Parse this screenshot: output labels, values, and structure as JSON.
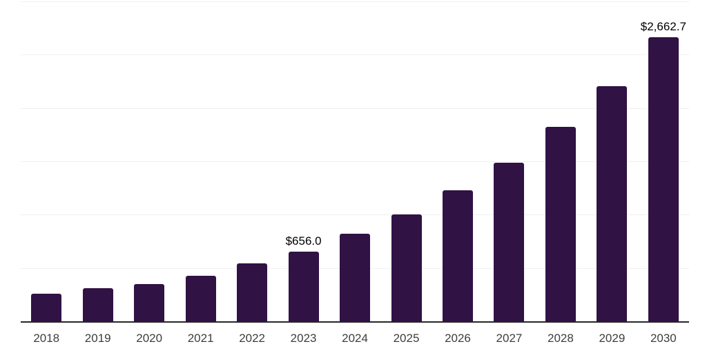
{
  "chart_data": {
    "type": "bar",
    "categories": [
      "2018",
      "2019",
      "2020",
      "2021",
      "2022",
      "2023",
      "2024",
      "2025",
      "2026",
      "2027",
      "2028",
      "2029",
      "2030"
    ],
    "values": [
      260,
      310,
      350,
      430,
      540,
      656.0,
      820,
      1000,
      1230,
      1490,
      1825,
      2205,
      2662.7
    ],
    "data_labels": [
      null,
      null,
      null,
      null,
      null,
      "$656.0",
      null,
      null,
      null,
      null,
      null,
      null,
      "$2,662.7"
    ],
    "title": "",
    "xlabel": "",
    "ylabel": "",
    "ylim": [
      0,
      3000
    ],
    "grid_step": 500,
    "grid": "horizontal",
    "legend_position": "none",
    "colors": {
      "bar": "#301245",
      "gridline": "#f0f0f0",
      "axis": "#262626",
      "tick_label": "#3d3d3d",
      "value_label": "#000000",
      "background": "#ffffff"
    }
  }
}
